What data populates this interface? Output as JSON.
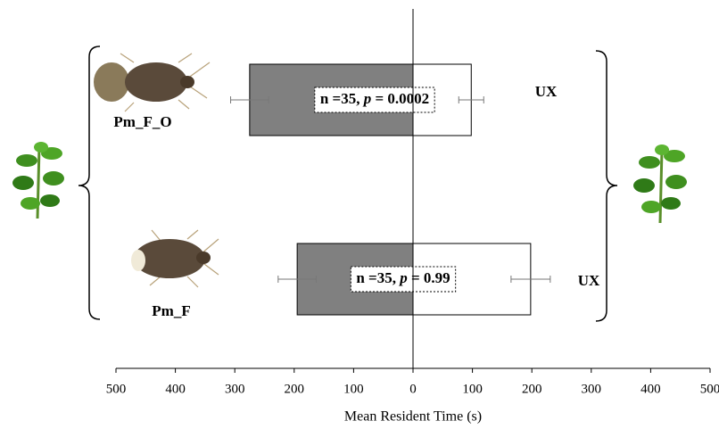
{
  "chart_data": {
    "type": "diverging-bar",
    "x_label": "Mean Resident Time (s)",
    "categories": [
      "Pm_F_O",
      "Pm_F"
    ],
    "right_labels": [
      "UX",
      "UX"
    ],
    "series": [
      {
        "color": "#808080",
        "values": [
          -275,
          -195
        ],
        "errors": [
          32,
          32
        ]
      },
      {
        "color": "#ffffff",
        "values": [
          98,
          198
        ],
        "errors": [
          21,
          33
        ]
      }
    ],
    "annotations": [
      {
        "text": [
          "n =35, ",
          "p",
          " = 0.0002"
        ]
      },
      {
        "text": [
          "n =35, ",
          "p",
          " = 0.99"
        ]
      }
    ],
    "xlim": [
      -500,
      500
    ],
    "xticks": [
      {
        "value": -500,
        "label": "500"
      },
      {
        "value": -400,
        "label": "400"
      },
      {
        "value": -300,
        "label": "300"
      },
      {
        "value": -200,
        "label": "200"
      },
      {
        "value": -100,
        "label": "100"
      },
      0,
      100,
      200,
      300,
      400,
      500
    ]
  }
}
